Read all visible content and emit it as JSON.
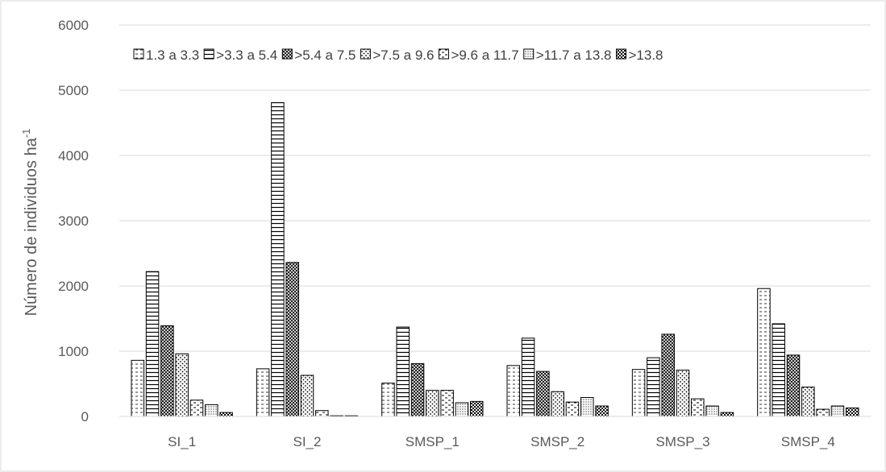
{
  "chart_data": {
    "type": "bar",
    "title": "",
    "xlabel": "",
    "ylabel": "Número de individuos ha",
    "ylabel_sup": "-1",
    "ylim": [
      0,
      6000
    ],
    "yticks": [
      0,
      1000,
      2000,
      3000,
      4000,
      5000,
      6000
    ],
    "ytick_labels": [
      "0",
      "1000",
      "2000",
      "3000",
      "4000",
      "5000",
      "6000"
    ],
    "grid": true,
    "legend_position": "top",
    "categories": [
      "SI_1",
      "SI_2",
      "SMSP_1",
      "SMSP_2",
      "SMSP_3",
      "SMSP_4"
    ],
    "series": [
      {
        "name": "1.3 a 3.3",
        "pattern": "dotted-lines",
        "values": [
          860,
          730,
          510,
          780,
          720,
          1960
        ]
      },
      {
        "name": ">3.3 a 5.4",
        "pattern": "horizontal-lines",
        "values": [
          2220,
          4810,
          1370,
          1200,
          900,
          1420
        ]
      },
      {
        "name": ">5.4 a 7.5",
        "pattern": "diagonal-hatch",
        "values": [
          1390,
          2360,
          810,
          690,
          1260,
          940
        ]
      },
      {
        "name": ">7.5 a 9.6",
        "pattern": "sparse-dots",
        "values": [
          960,
          630,
          400,
          380,
          710,
          450
        ]
      },
      {
        "name": ">9.6 a 11.7",
        "pattern": "dashed-lines",
        "values": [
          250,
          90,
          400,
          220,
          270,
          110
        ]
      },
      {
        "name": ">11.7 a 13.8",
        "pattern": "fine-dots",
        "values": [
          180,
          10,
          210,
          290,
          160,
          160
        ]
      },
      {
        "name": ">13.8",
        "pattern": "checker",
        "values": [
          60,
          0,
          230,
          160,
          60,
          130
        ]
      }
    ]
  }
}
